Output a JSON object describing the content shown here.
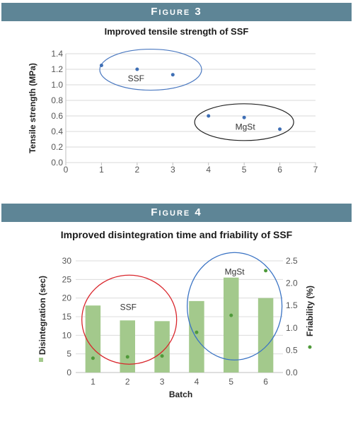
{
  "figure3": {
    "header": "Figure 3",
    "title": "Improved tensile strength of SSF"
  },
  "figure4": {
    "header": "Figure 4",
    "title": "Improved disintegration time and friability of SSF"
  },
  "colors": {
    "header_bg": "#5e8596",
    "point_blue": "#3f6fb5",
    "ellipse_blue": "#4a78c0",
    "ellipse_black": "#222222",
    "bar_green": "#a3c98c",
    "point_green": "#4f9a3a",
    "circle_red": "#d9262c",
    "circle_blue": "#3a73c4"
  },
  "chart_data": [
    {
      "type": "scatter",
      "title": "Improved tensile strength of SSF",
      "xlabel": "",
      "ylabel": "Tensile strength (MPa)",
      "xlim": [
        0,
        7
      ],
      "ylim": [
        0,
        1.4
      ],
      "xticks": [
        "0",
        "1",
        "2",
        "3",
        "4",
        "5",
        "6",
        "7"
      ],
      "yticks": [
        "0.0",
        "0.2",
        "0.4",
        "0.6",
        "0.8",
        "1.0",
        "1.2",
        "1.4"
      ],
      "grid": true,
      "series": [
        {
          "x": [
            1,
            2,
            3,
            4,
            5,
            6
          ],
          "y": [
            1.25,
            1.2,
            1.13,
            0.6,
            0.58,
            0.43
          ]
        }
      ],
      "annotations": [
        "SSF",
        "MgSt"
      ]
    },
    {
      "type": "bar",
      "title": "Improved disintegration time and friability of SSF",
      "xlabel": "Batch",
      "ylabel": "Disintegration (sec)",
      "y2label": "Friability (%)",
      "categories": [
        "1",
        "2",
        "3",
        "4",
        "5",
        "6"
      ],
      "ylim": [
        0,
        30
      ],
      "y2lim": [
        0,
        2.5
      ],
      "yticks": [
        "0",
        "5",
        "10",
        "15",
        "20",
        "25",
        "30"
      ],
      "y2ticks": [
        "0.0",
        "0.5",
        "1.0",
        "1.5",
        "2.0",
        "2.5"
      ],
      "grid": true,
      "series": [
        {
          "name": "Disintegration (sec)",
          "type": "bar",
          "axis": "left",
          "values": [
            18,
            14,
            13.8,
            19.2,
            25.5,
            20
          ]
        },
        {
          "name": "Friability (%)",
          "type": "scatter",
          "axis": "right",
          "values": [
            0.32,
            0.35,
            0.37,
            0.9,
            1.28,
            2.28
          ]
        }
      ],
      "annotations": [
        "SSF",
        "MgSt"
      ]
    }
  ]
}
